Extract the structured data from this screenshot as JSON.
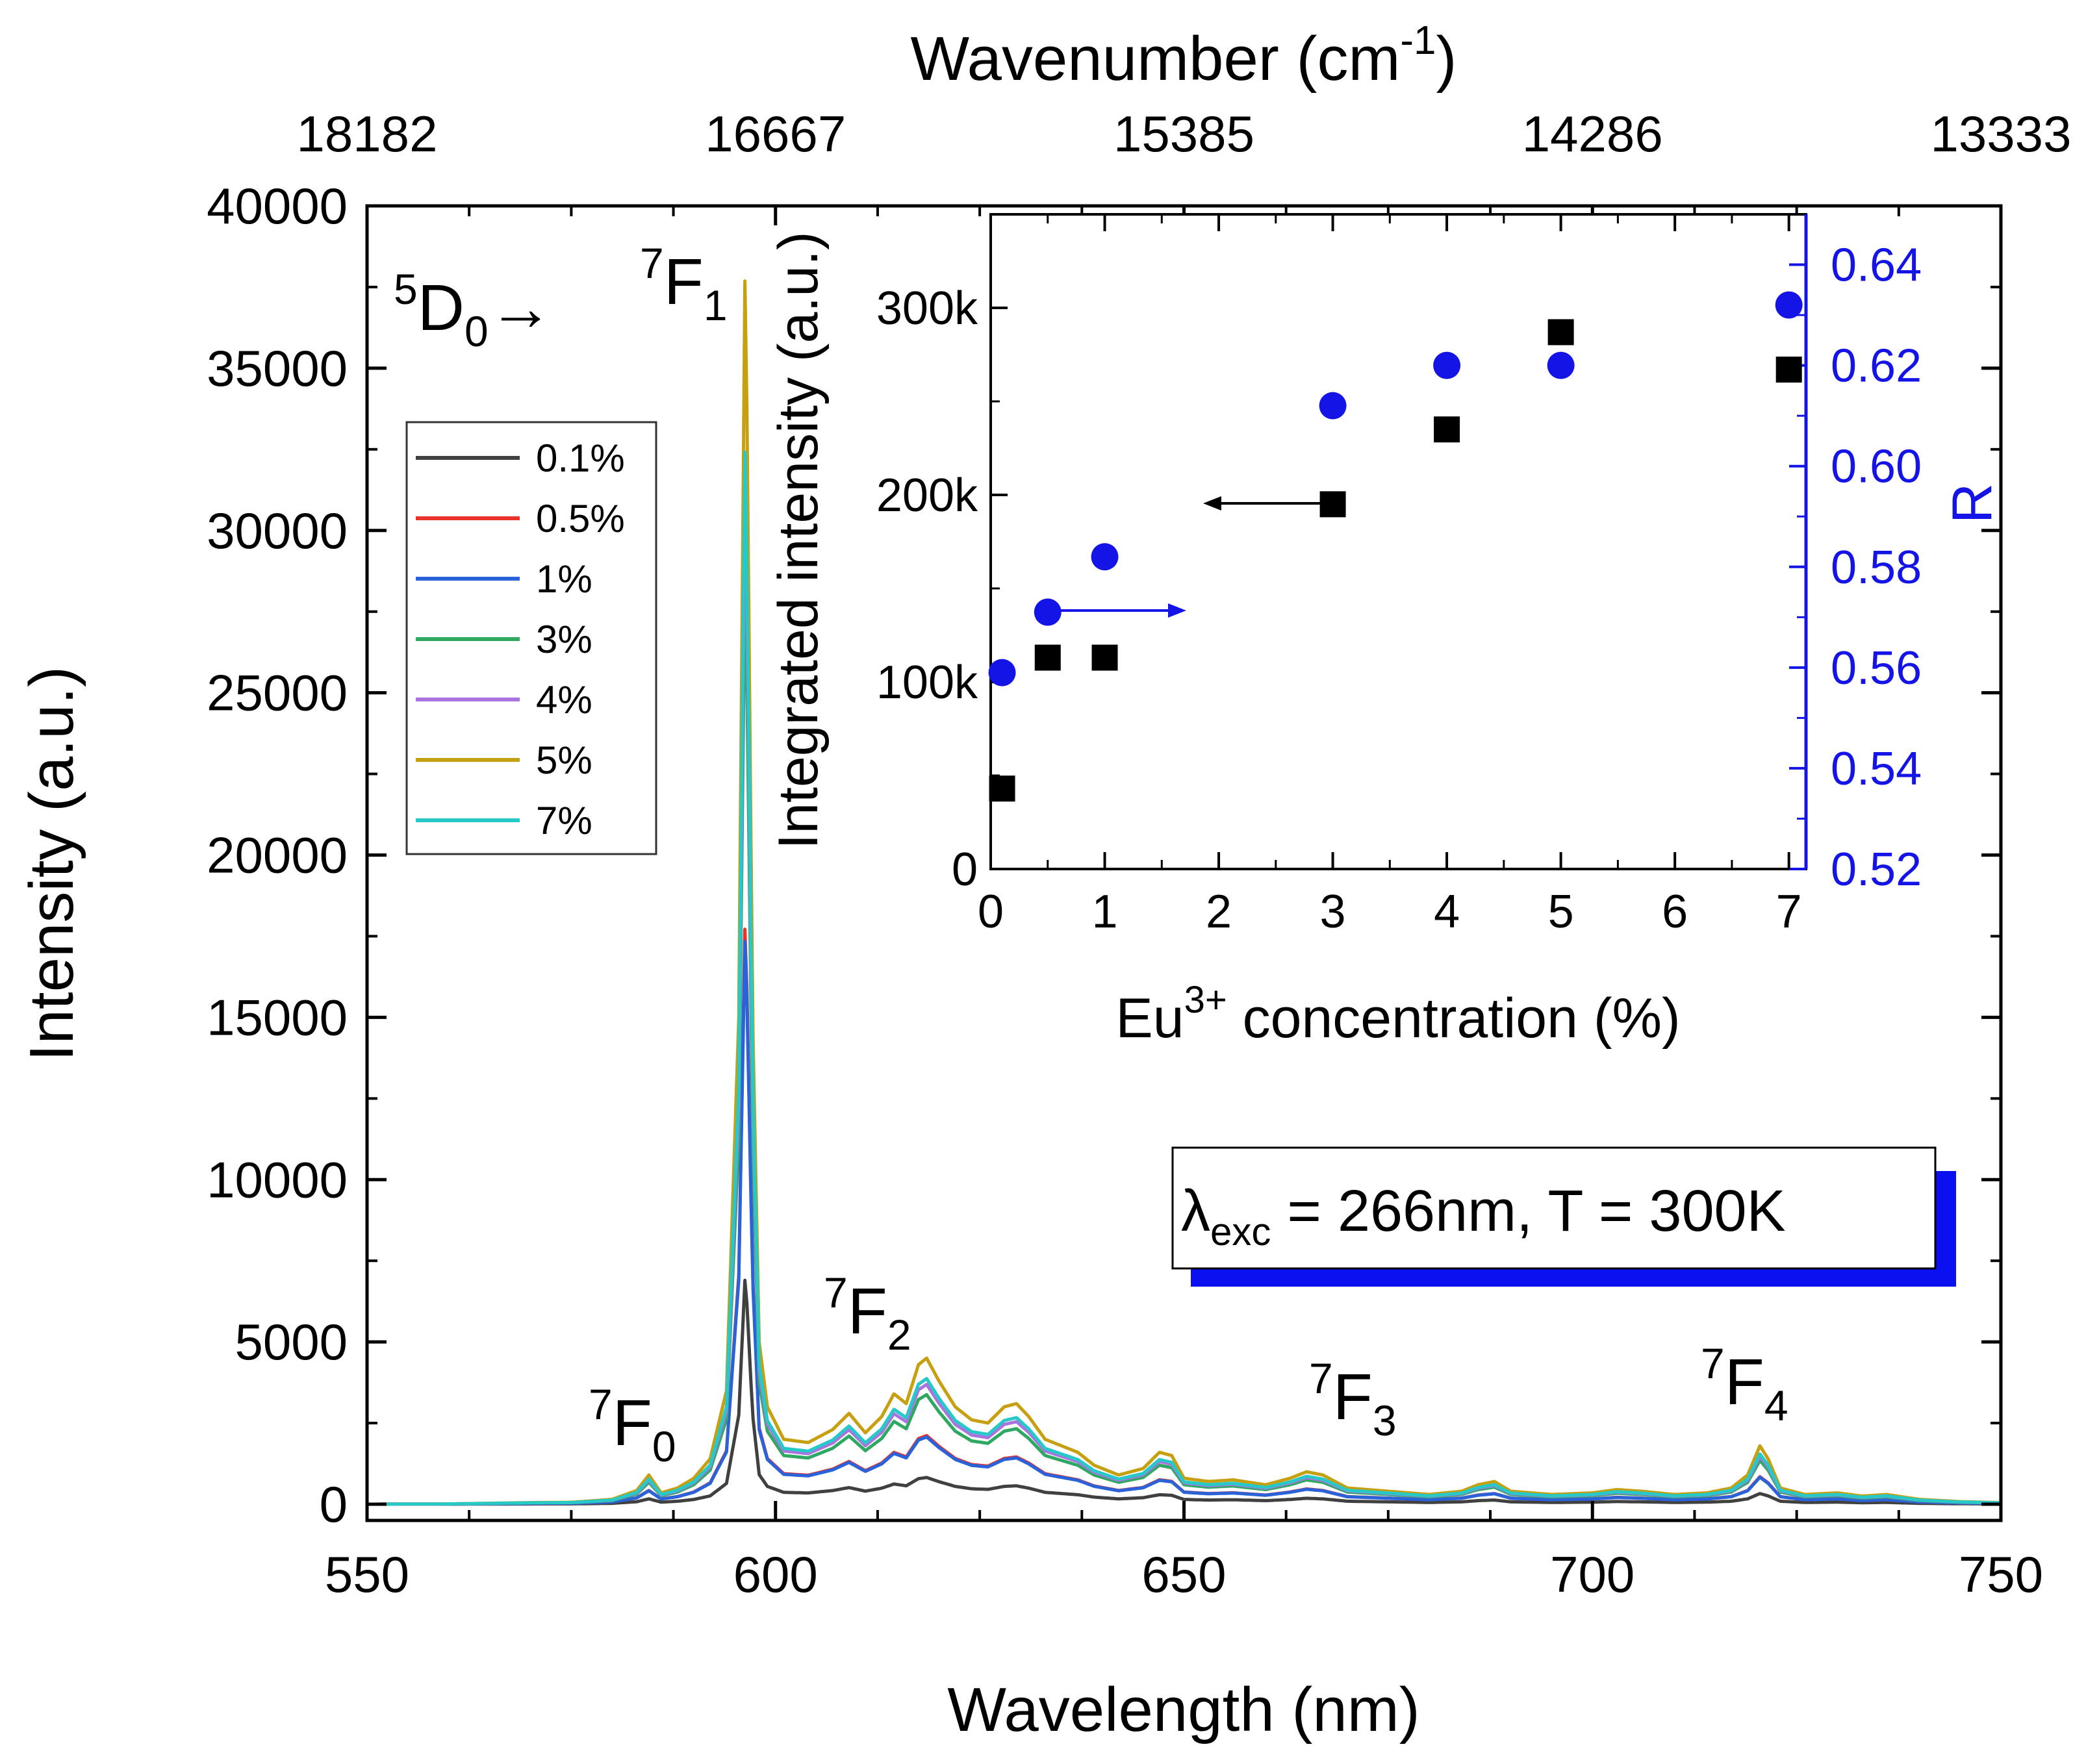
{
  "chart_data": [
    {
      "type": "line",
      "title": "",
      "xlabel": "Wavelength (nm)",
      "ylabel": "Intensity (a.u.)",
      "x2label": {
        "base": "Wavenumber (cm",
        "sup": "-1",
        "tail": ")"
      },
      "xlim": [
        550,
        750
      ],
      "ylim": [
        -500,
        40000
      ],
      "xticks": [
        550,
        600,
        650,
        700,
        750
      ],
      "yticks": [
        0,
        5000,
        10000,
        15000,
        20000,
        25000,
        30000,
        35000,
        40000
      ],
      "x2ticks": [
        "18182",
        "16667",
        "15385",
        "14286",
        "13333"
      ],
      "legend_position": "upper-left",
      "series": [
        {
          "name": "0.1%",
          "color": "#404040",
          "scale": 0.183
        },
        {
          "name": "0.5%",
          "color": "#e8322a",
          "scale": 0.47
        },
        {
          "name": "1%",
          "color": "#2962d9",
          "scale": 0.46
        },
        {
          "name": "3%",
          "color": "#2ea862",
          "scale": 0.75
        },
        {
          "name": "4%",
          "color": "#a974e0",
          "scale": 0.82
        },
        {
          "name": "5%",
          "color": "#c7a012",
          "scale": 1.0
        },
        {
          "name": "7%",
          "color": "#26c8c8",
          "scale": 0.86
        }
      ],
      "peak_profile_nm_intensity": [
        [
          550,
          0
        ],
        [
          560,
          10
        ],
        [
          570,
          50
        ],
        [
          575,
          60
        ],
        [
          580,
          150
        ],
        [
          583,
          420
        ],
        [
          584.5,
          900
        ],
        [
          586,
          350
        ],
        [
          588,
          500
        ],
        [
          590,
          800
        ],
        [
          592,
          1400
        ],
        [
          594,
          3500
        ],
        [
          595.5,
          15000
        ],
        [
          596.3,
          39200
        ],
        [
          597.2,
          15000
        ],
        [
          598,
          5000
        ],
        [
          599,
          3000
        ],
        [
          601,
          2000
        ],
        [
          604,
          1900
        ],
        [
          607,
          2300
        ],
        [
          609,
          2800
        ],
        [
          611,
          2200
        ],
        [
          613,
          2700
        ],
        [
          614.5,
          3400
        ],
        [
          616,
          3100
        ],
        [
          617.5,
          4300
        ],
        [
          618.5,
          4500
        ],
        [
          620,
          3800
        ],
        [
          622,
          3000
        ],
        [
          624,
          2600
        ],
        [
          626,
          2500
        ],
        [
          628,
          3000
        ],
        [
          629.5,
          3100
        ],
        [
          631,
          2700
        ],
        [
          633,
          2000
        ],
        [
          635,
          1800
        ],
        [
          637,
          1600
        ],
        [
          639,
          1200
        ],
        [
          642,
          900
        ],
        [
          645,
          1100
        ],
        [
          647,
          1600
        ],
        [
          648.5,
          1500
        ],
        [
          650,
          800
        ],
        [
          653,
          700
        ],
        [
          656,
          750
        ],
        [
          660,
          600
        ],
        [
          663,
          800
        ],
        [
          665,
          1000
        ],
        [
          667,
          900
        ],
        [
          670,
          500
        ],
        [
          675,
          400
        ],
        [
          680,
          300
        ],
        [
          684,
          400
        ],
        [
          686,
          600
        ],
        [
          688,
          700
        ],
        [
          690,
          400
        ],
        [
          695,
          300
        ],
        [
          700,
          350
        ],
        [
          703,
          450
        ],
        [
          706,
          400
        ],
        [
          710,
          300
        ],
        [
          714,
          350
        ],
        [
          717,
          500
        ],
        [
          719,
          900
        ],
        [
          720.5,
          1800
        ],
        [
          721.5,
          1400
        ],
        [
          723,
          500
        ],
        [
          726,
          300
        ],
        [
          730,
          350
        ],
        [
          733,
          250
        ],
        [
          736,
          300
        ],
        [
          740,
          150
        ],
        [
          745,
          80
        ],
        [
          750,
          50
        ]
      ],
      "annotations": [
        {
          "id": "d0",
          "pre": "5",
          "base": "D",
          "sub": "0",
          "tail": "→"
        },
        {
          "id": "f1",
          "pre": "7",
          "base": "F",
          "sub": "1"
        },
        {
          "id": "f0",
          "pre": "7",
          "base": "F",
          "sub": "0"
        },
        {
          "id": "f2",
          "pre": "7",
          "base": "F",
          "sub": "2"
        },
        {
          "id": "f3",
          "pre": "7",
          "base": "F",
          "sub": "3"
        },
        {
          "id": "f4",
          "pre": "7",
          "base": "F",
          "sub": "4"
        }
      ],
      "condition_box": {
        "symbol": "λ",
        "sub": "exc",
        "text": " = 266nm, T = 300K"
      }
    },
    {
      "type": "scatter",
      "title": "",
      "xlabel": {
        "base": "Eu",
        "sup": "3+",
        "tail": " concentration (%)"
      },
      "ylabel": "Integrated intensity (a.u.)",
      "y2label": "R",
      "xlim": [
        0,
        7.15
      ],
      "ylim": [
        0,
        350000
      ],
      "y2lim": [
        0.52,
        0.65
      ],
      "xticks": [
        0,
        1,
        2,
        3,
        4,
        5,
        6,
        7
      ],
      "yticks": [
        0,
        100000,
        200000,
        300000
      ],
      "ytick_labels": [
        "0",
        "100k",
        "200k",
        "300k"
      ],
      "y2ticks": [
        "0.52",
        "0.54",
        "0.56",
        "0.58",
        "0.60",
        "0.62",
        "0.64"
      ],
      "y2tick_values": [
        0.52,
        0.54,
        0.56,
        0.58,
        0.6,
        0.62,
        0.64
      ],
      "series": [
        {
          "name": "Integrated intensity",
          "axis": "left",
          "marker": "square",
          "color": "#000000",
          "x": [
            0.1,
            0.5,
            1,
            3,
            4,
            5,
            7
          ],
          "values": [
            43000,
            113000,
            113000,
            195000,
            235000,
            287000,
            267000
          ]
        },
        {
          "name": "R",
          "axis": "right",
          "marker": "circle",
          "color": "#1414e6",
          "x": [
            0.1,
            0.5,
            1,
            3,
            4,
            5,
            7
          ],
          "values": [
            0.559,
            0.571,
            0.582,
            0.612,
            0.62,
            0.62,
            0.632
          ]
        }
      ]
    }
  ]
}
